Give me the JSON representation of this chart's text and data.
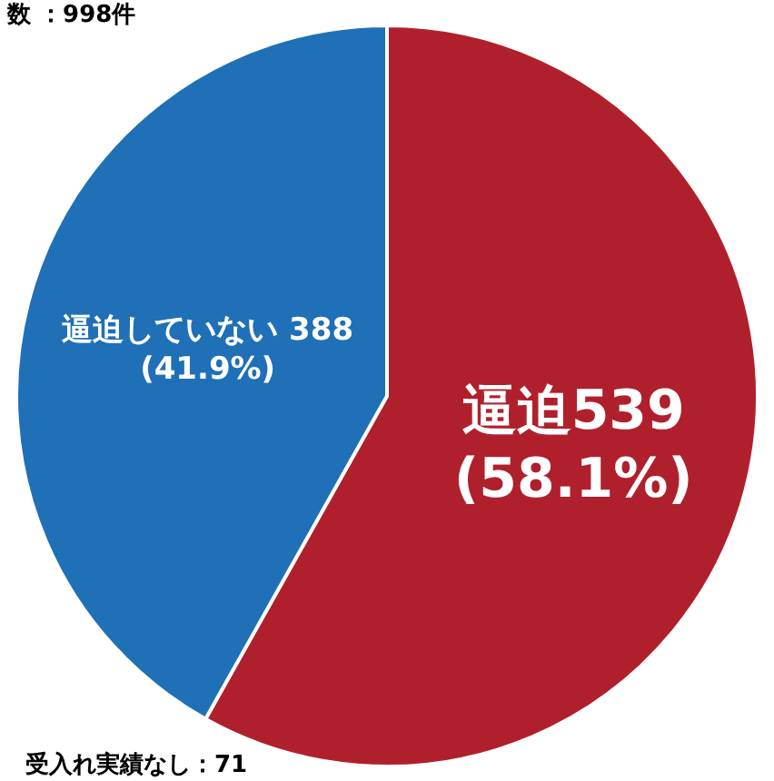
{
  "chart_data": {
    "type": "pie",
    "categories": [
      "逼迫",
      "逼迫していない"
    ],
    "values": [
      539,
      388
    ],
    "colors": [
      "#b0202c",
      "#1f70b6"
    ],
    "value_labels": [
      "539\n(58.1%)",
      " 388\n(41.9%)"
    ],
    "annotations": [
      "数 ：998件",
      "受入れ実績なし：71"
    ]
  }
}
